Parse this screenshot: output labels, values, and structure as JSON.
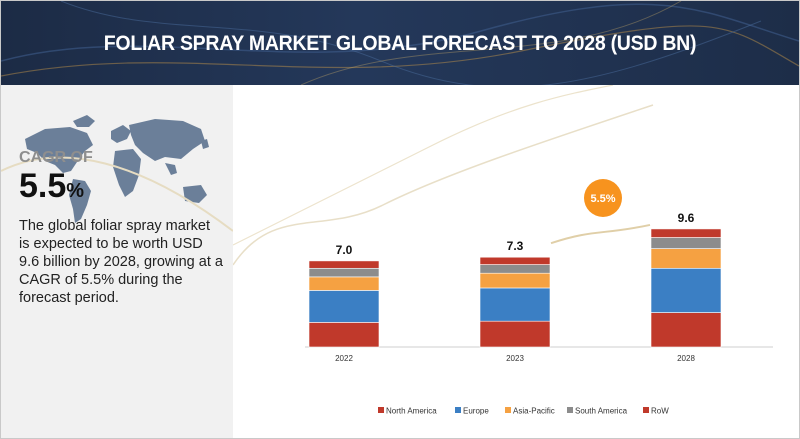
{
  "header": {
    "title": "FOLIAR SPRAY MARKET GLOBAL FORECAST TO 2028 (USD BN)"
  },
  "sidebar": {
    "cagr_label": "CAGR OF",
    "cagr_number": "5.5",
    "cagr_unit": "%",
    "description": "The global foliar spray market is expected to be worth USD 9.6 billion by 2028, growing at a CAGR of 5.5% during the forecast period.",
    "map_icon": "world-map-icon"
  },
  "colors": {
    "header_bg": "#1f3050",
    "badge": "#f7931e"
  },
  "chart_data": {
    "type": "bar",
    "stacked": true,
    "categories": [
      "2022",
      "2023",
      "2028"
    ],
    "totals": [
      "7.0",
      "7.3",
      "9.6"
    ],
    "badge": "5.5%",
    "ylim": [
      0,
      10
    ],
    "grid": false,
    "legend_position": "bottom",
    "series": [
      {
        "name": "North America",
        "color": "#c0392b",
        "values": [
          2.0,
          2.1,
          2.8
        ]
      },
      {
        "name": "Europe",
        "color": "#3b7fc4",
        "values": [
          2.6,
          2.7,
          3.6
        ]
      },
      {
        "name": "Asia-Pacific",
        "color": "#f5a142",
        "values": [
          1.1,
          1.2,
          1.6
        ]
      },
      {
        "name": "South America",
        "color": "#8c8c8c",
        "values": [
          0.7,
          0.7,
          0.9
        ]
      },
      {
        "name": "RoW",
        "color": "#c0392b",
        "values": [
          0.6,
          0.6,
          0.7
        ]
      }
    ]
  }
}
